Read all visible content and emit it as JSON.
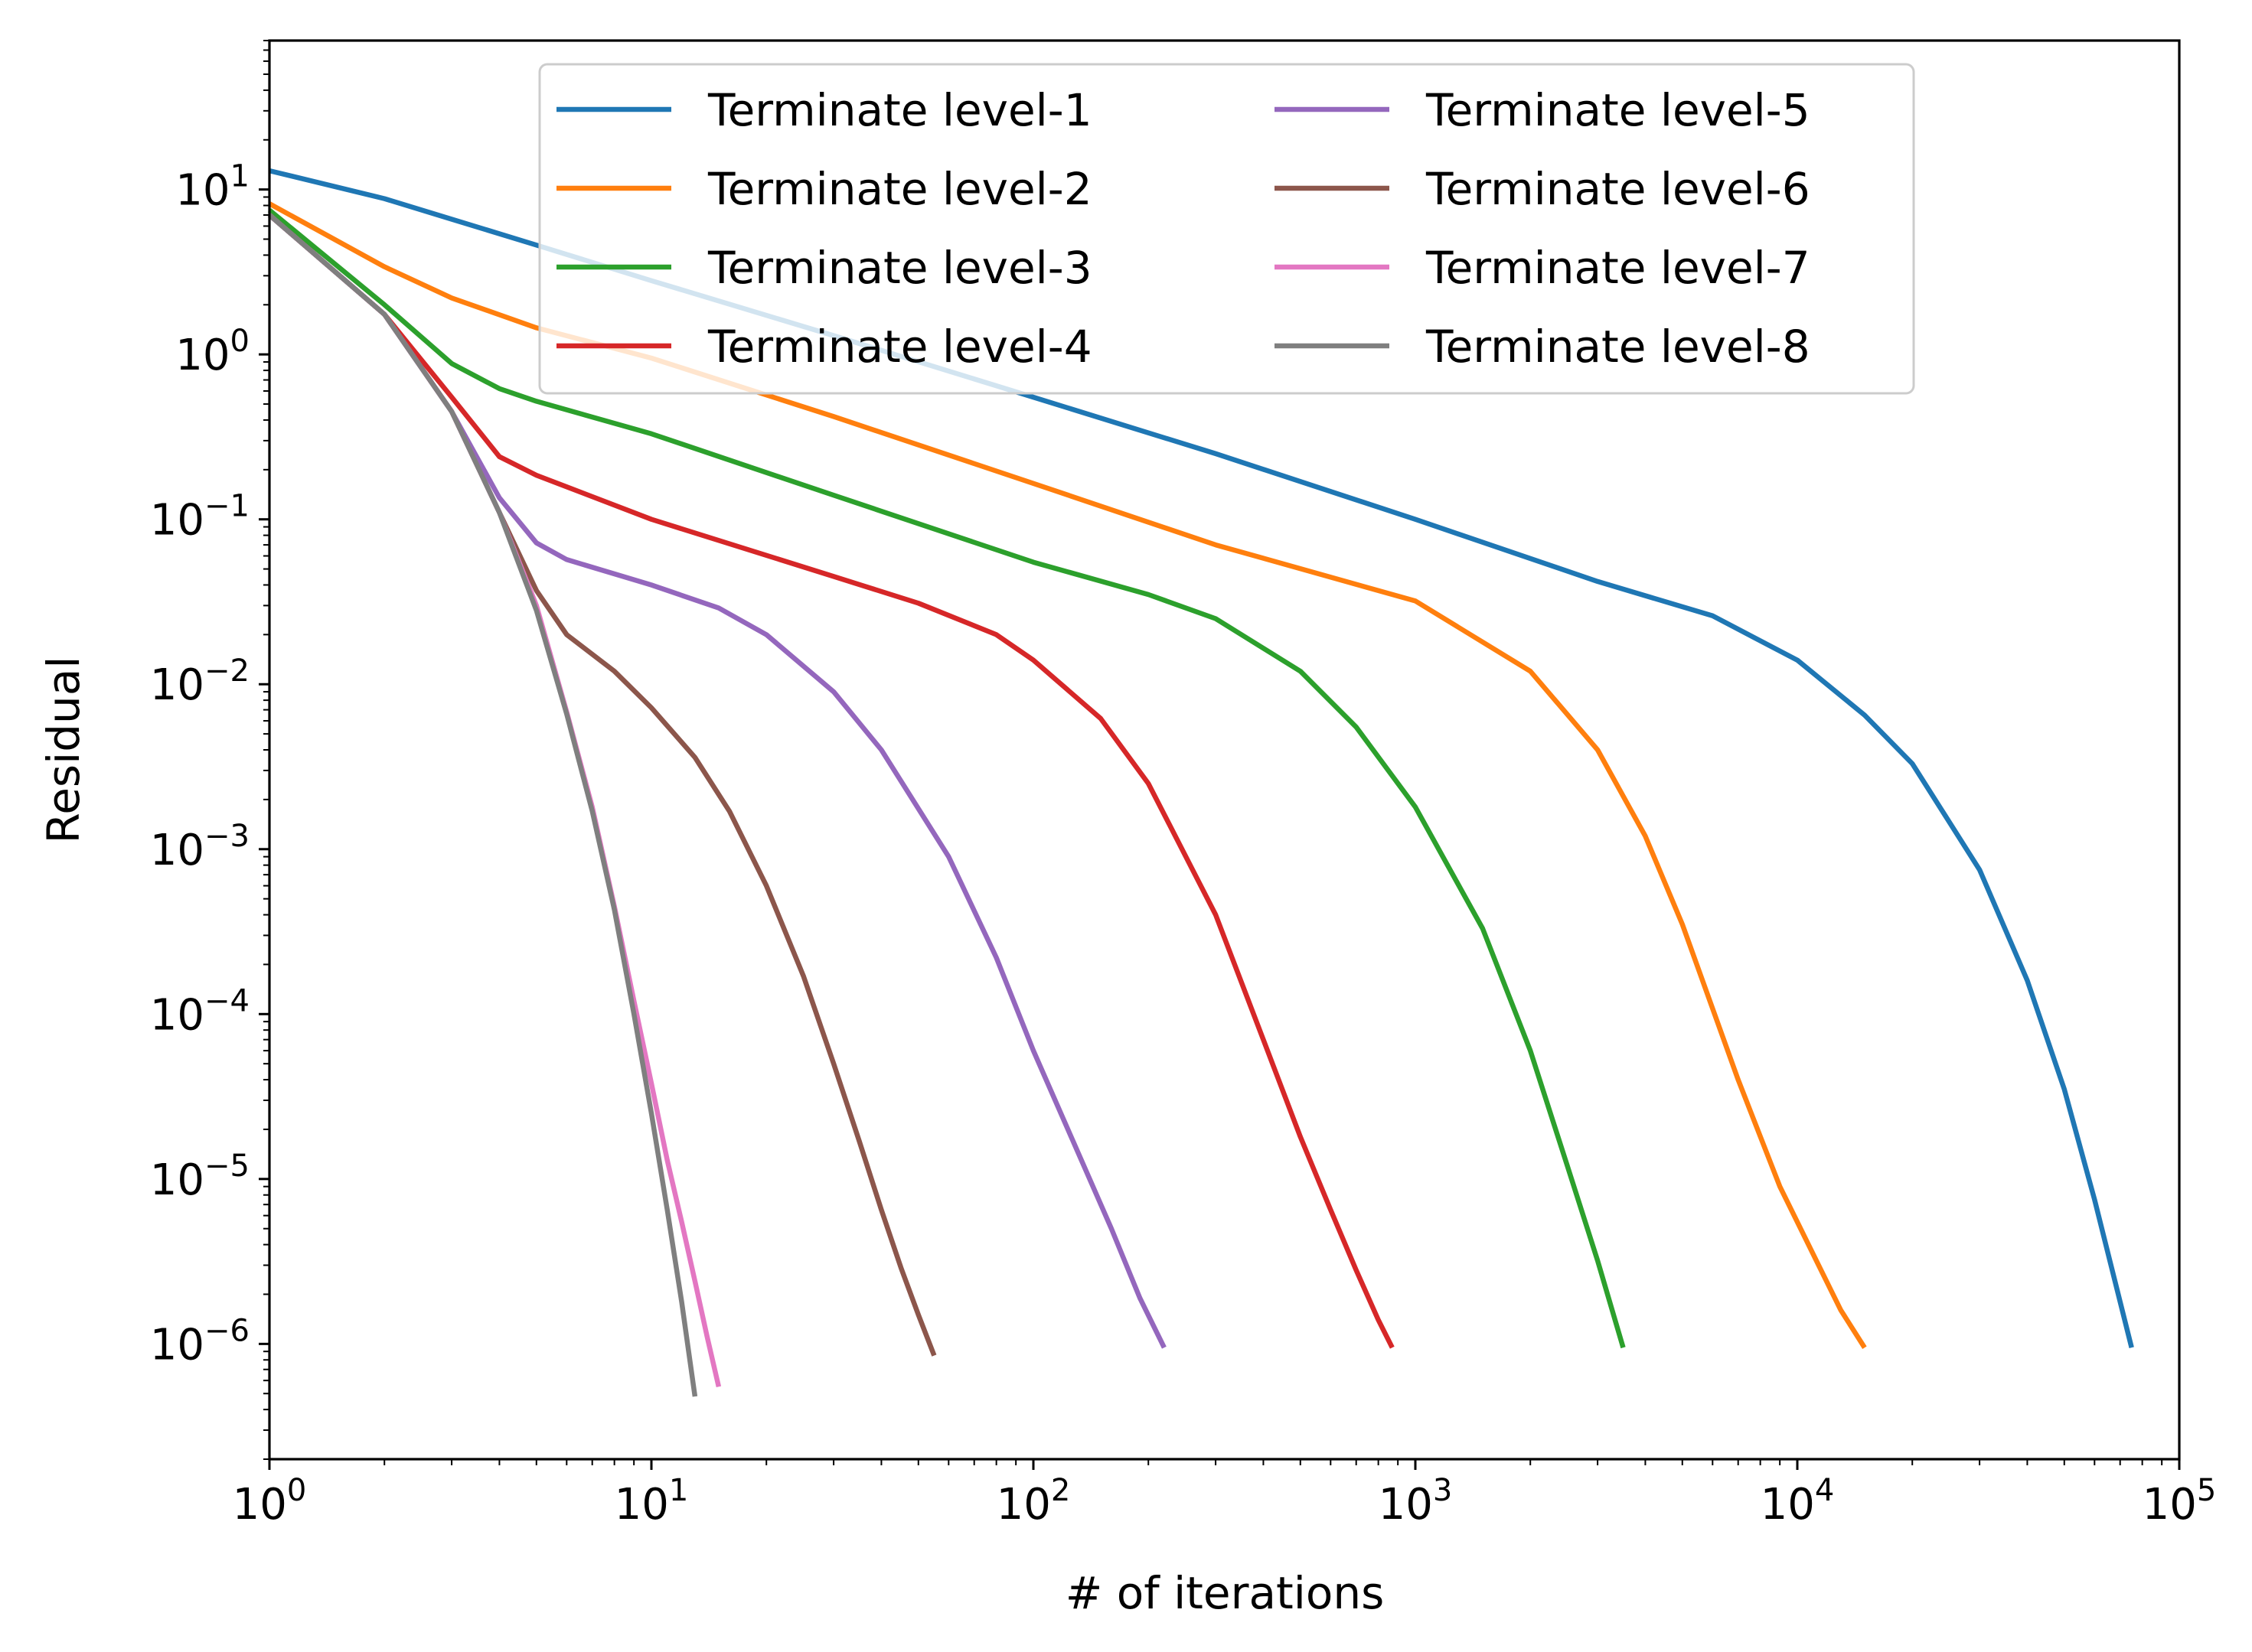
{
  "chart_data": {
    "type": "line",
    "xlabel": "# of iterations",
    "ylabel": "Residual",
    "xscale": "log",
    "yscale": "log",
    "xlim": [
      1,
      100000
    ],
    "ylim": [
      2e-07,
      80
    ],
    "grid": false,
    "legend": {
      "placement": "upper center",
      "columns": 2
    },
    "x_ticks": [
      {
        "value": 1,
        "base": "10",
        "exp": "0"
      },
      {
        "value": 10,
        "base": "10",
        "exp": "1"
      },
      {
        "value": 100,
        "base": "10",
        "exp": "2"
      },
      {
        "value": 1000,
        "base": "10",
        "exp": "3"
      },
      {
        "value": 10000,
        "base": "10",
        "exp": "4"
      },
      {
        "value": 100000,
        "base": "10",
        "exp": "5"
      }
    ],
    "y_ticks": [
      {
        "value": 10,
        "base": "10",
        "exp": "1"
      },
      {
        "value": 1,
        "base": "10",
        "exp": "0"
      },
      {
        "value": 0.1,
        "base": "10",
        "exp": "−1"
      },
      {
        "value": 0.01,
        "base": "10",
        "exp": "−2"
      },
      {
        "value": 0.001,
        "base": "10",
        "exp": "−3"
      },
      {
        "value": 0.0001,
        "base": "10",
        "exp": "−4"
      },
      {
        "value": 1e-05,
        "base": "10",
        "exp": "−5"
      },
      {
        "value": 1e-06,
        "base": "10",
        "exp": "−6"
      }
    ],
    "series": [
      {
        "name": "Terminate level-1",
        "color": "#1f77b4",
        "x": [
          1,
          2,
          3,
          5,
          10,
          30,
          100,
          300,
          1000,
          3000,
          6000,
          10000,
          15000,
          20000,
          30000,
          40000,
          50000,
          60000,
          75000
        ],
        "y": [
          13,
          8.8,
          6.6,
          4.6,
          2.8,
          1.3,
          0.55,
          0.25,
          0.1,
          0.042,
          0.026,
          0.014,
          0.0065,
          0.0033,
          0.00075,
          0.00016,
          3.5e-05,
          7.5e-06,
          9.5e-07
        ]
      },
      {
        "name": "Terminate level-2",
        "color": "#ff7f0e",
        "x": [
          1,
          2,
          3,
          5,
          10,
          30,
          100,
          300,
          1000,
          2000,
          3000,
          4000,
          5000,
          7000,
          9000,
          11000,
          13000,
          15000
        ],
        "y": [
          8.2,
          3.4,
          2.2,
          1.45,
          0.95,
          0.42,
          0.165,
          0.07,
          0.032,
          0.012,
          0.004,
          0.0012,
          0.00035,
          4e-05,
          9e-06,
          3.5e-06,
          1.6e-06,
          9.5e-07
        ]
      },
      {
        "name": "Terminate level-3",
        "color": "#2ca02c",
        "x": [
          1,
          2,
          3,
          4,
          5,
          10,
          30,
          100,
          200,
          300,
          500,
          700,
          1000,
          1500,
          2000,
          2500,
          3000,
          3500
        ],
        "y": [
          7.5,
          2.0,
          0.88,
          0.62,
          0.52,
          0.33,
          0.14,
          0.055,
          0.035,
          0.025,
          0.012,
          0.0055,
          0.0018,
          0.00033,
          6e-05,
          1.2e-05,
          3.2e-06,
          9.5e-07
        ]
      },
      {
        "name": "Terminate level-4",
        "color": "#d62728",
        "x": [
          1,
          2,
          3,
          4,
          5,
          10,
          30,
          50,
          80,
          100,
          150,
          200,
          300,
          400,
          500,
          600,
          700,
          800,
          870
        ],
        "y": [
          7.0,
          1.75,
          0.55,
          0.24,
          0.185,
          0.1,
          0.045,
          0.031,
          0.02,
          0.014,
          0.0062,
          0.0025,
          0.0004,
          7e-05,
          1.8e-05,
          6.5e-06,
          2.8e-06,
          1.4e-06,
          9.5e-07
        ]
      },
      {
        "name": "Terminate level-5",
        "color": "#9467bd",
        "x": [
          1,
          2,
          3,
          4,
          5,
          6,
          10,
          15,
          20,
          30,
          40,
          60,
          80,
          100,
          130,
          160,
          190,
          220
        ],
        "y": [
          7.0,
          1.75,
          0.45,
          0.135,
          0.072,
          0.057,
          0.04,
          0.029,
          0.02,
          0.009,
          0.004,
          0.0009,
          0.00022,
          6e-05,
          1.5e-05,
          5e-06,
          1.9e-06,
          9.5e-07
        ]
      },
      {
        "name": "Terminate level-6",
        "color": "#8c564b",
        "x": [
          1,
          2,
          3,
          4,
          5,
          6,
          8,
          10,
          13,
          16,
          20,
          25,
          30,
          35,
          40,
          45,
          50,
          55
        ],
        "y": [
          7.0,
          1.75,
          0.45,
          0.11,
          0.037,
          0.02,
          0.012,
          0.0072,
          0.0036,
          0.0017,
          0.0006,
          0.00017,
          5e-05,
          1.7e-05,
          6.5e-06,
          2.9e-06,
          1.5e-06,
          8.5e-07
        ]
      },
      {
        "name": "Terminate level-7",
        "color": "#e377c2",
        "x": [
          1,
          2,
          3,
          4,
          5,
          6,
          7,
          8,
          9,
          10,
          11,
          12,
          13,
          14,
          15
        ],
        "y": [
          7.0,
          1.75,
          0.45,
          0.11,
          0.03,
          0.0068,
          0.0018,
          0.00045,
          0.00012,
          3.8e-05,
          1.3e-05,
          5.5e-06,
          2.4e-06,
          1.1e-06,
          5.5e-07
        ]
      },
      {
        "name": "Terminate level-8",
        "color": "#7f7f7f",
        "x": [
          1,
          2,
          3,
          4,
          5,
          6,
          7,
          8,
          9,
          10,
          11,
          12,
          13
        ],
        "y": [
          7.0,
          1.75,
          0.45,
          0.11,
          0.028,
          0.0066,
          0.0017,
          0.00043,
          0.0001,
          2.5e-05,
          6.5e-06,
          1.8e-06,
          4.8e-07
        ]
      }
    ]
  }
}
